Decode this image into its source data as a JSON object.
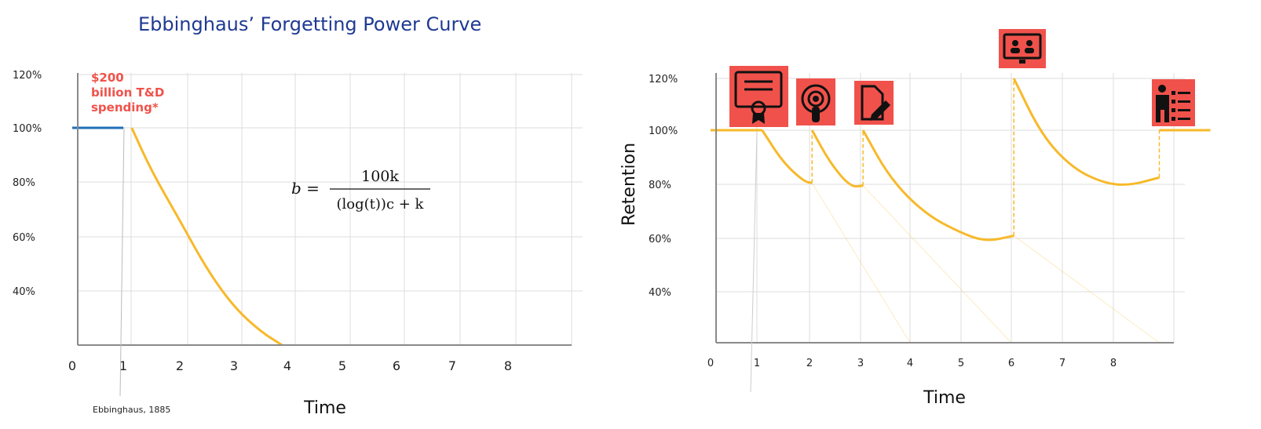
{
  "chart_data": [
    {
      "type": "line",
      "title": "Ebbinghaus’ Forgetting Power Curve",
      "xlabel": "Time",
      "ylabel": "",
      "x_ticks": [
        "0",
        "1",
        "2",
        "3",
        "4",
        "5",
        "6",
        "7",
        "8"
      ],
      "y_ticks": [
        "120%",
        "100%",
        "80%",
        "60%",
        "40%"
      ],
      "xlim": [
        0,
        9
      ],
      "ylim": [
        20,
        120
      ],
      "grid": true,
      "series": [
        {
          "values_x": [
            0,
            1
          ],
          "values_y": [
            100,
            100
          ],
          "color": "#1f6fb8"
        },
        {
          "values_x": [
            1.15,
            1.5,
            2,
            2.5,
            3,
            3.5,
            3.9
          ],
          "values_y": [
            100,
            84,
            66,
            48,
            34,
            25,
            20
          ],
          "color": "#f7b92a"
        }
      ],
      "annotations": {
        "callout": [
          "$200",
          "billion T&D",
          "spending*"
        ],
        "credit": "Ebbinghaus, 1885",
        "formula": {
          "lhs": "b =",
          "numerator": "100k",
          "denominator": "(log(t))c + k"
        }
      }
    },
    {
      "type": "line",
      "title": "",
      "xlabel": "Time",
      "ylabel": "Retention",
      "x_ticks": [
        "0",
        "1",
        "2",
        "3",
        "4",
        "5",
        "6",
        "7",
        "8"
      ],
      "y_ticks": [
        "120%",
        "100%",
        "80%",
        "60%",
        "40%"
      ],
      "xlim": [
        0,
        9
      ],
      "ylim": [
        20,
        120
      ],
      "grid": true,
      "series": [
        {
          "values_x": [
            0,
            1.1
          ],
          "values_y": [
            100,
            100
          ],
          "color": "#f7b92a"
        },
        {
          "values_x": [
            1.1,
            1.5,
            1.9,
            2.05
          ],
          "values_y": [
            100,
            88,
            81,
            80.5
          ],
          "color": "#f7b92a"
        },
        {
          "values_x": [
            2.05,
            2.4,
            2.8,
            3.05
          ],
          "values_y": [
            100,
            88,
            79,
            79.5
          ],
          "color": "#f7b92a"
        },
        {
          "values_x": [
            3.05,
            3.6,
            4.3,
            5,
            5.5,
            6.05
          ],
          "values_y": [
            100,
            82,
            69,
            62,
            58.8,
            61
          ],
          "color": "#f7b92a"
        },
        {
          "values_x": [
            6.05,
            6.6,
            7.2,
            7.8,
            8.3,
            8.9
          ],
          "values_y": [
            120,
            98,
            86,
            80.5,
            79.5,
            82.5
          ],
          "color": "#f7b92a"
        },
        {
          "values_x": [
            8.9,
            9.9
          ],
          "values_y": [
            100,
            100
          ],
          "color": "#f7b92a"
        }
      ],
      "icons": [
        {
          "name": "certificate-icon",
          "x": 1
        },
        {
          "name": "podcast-icon",
          "x": 2
        },
        {
          "name": "document-edit-icon",
          "x": 3
        },
        {
          "name": "video-conference-icon",
          "x": 6
        },
        {
          "name": "presenter-icon",
          "x": 8.9
        }
      ]
    }
  ]
}
